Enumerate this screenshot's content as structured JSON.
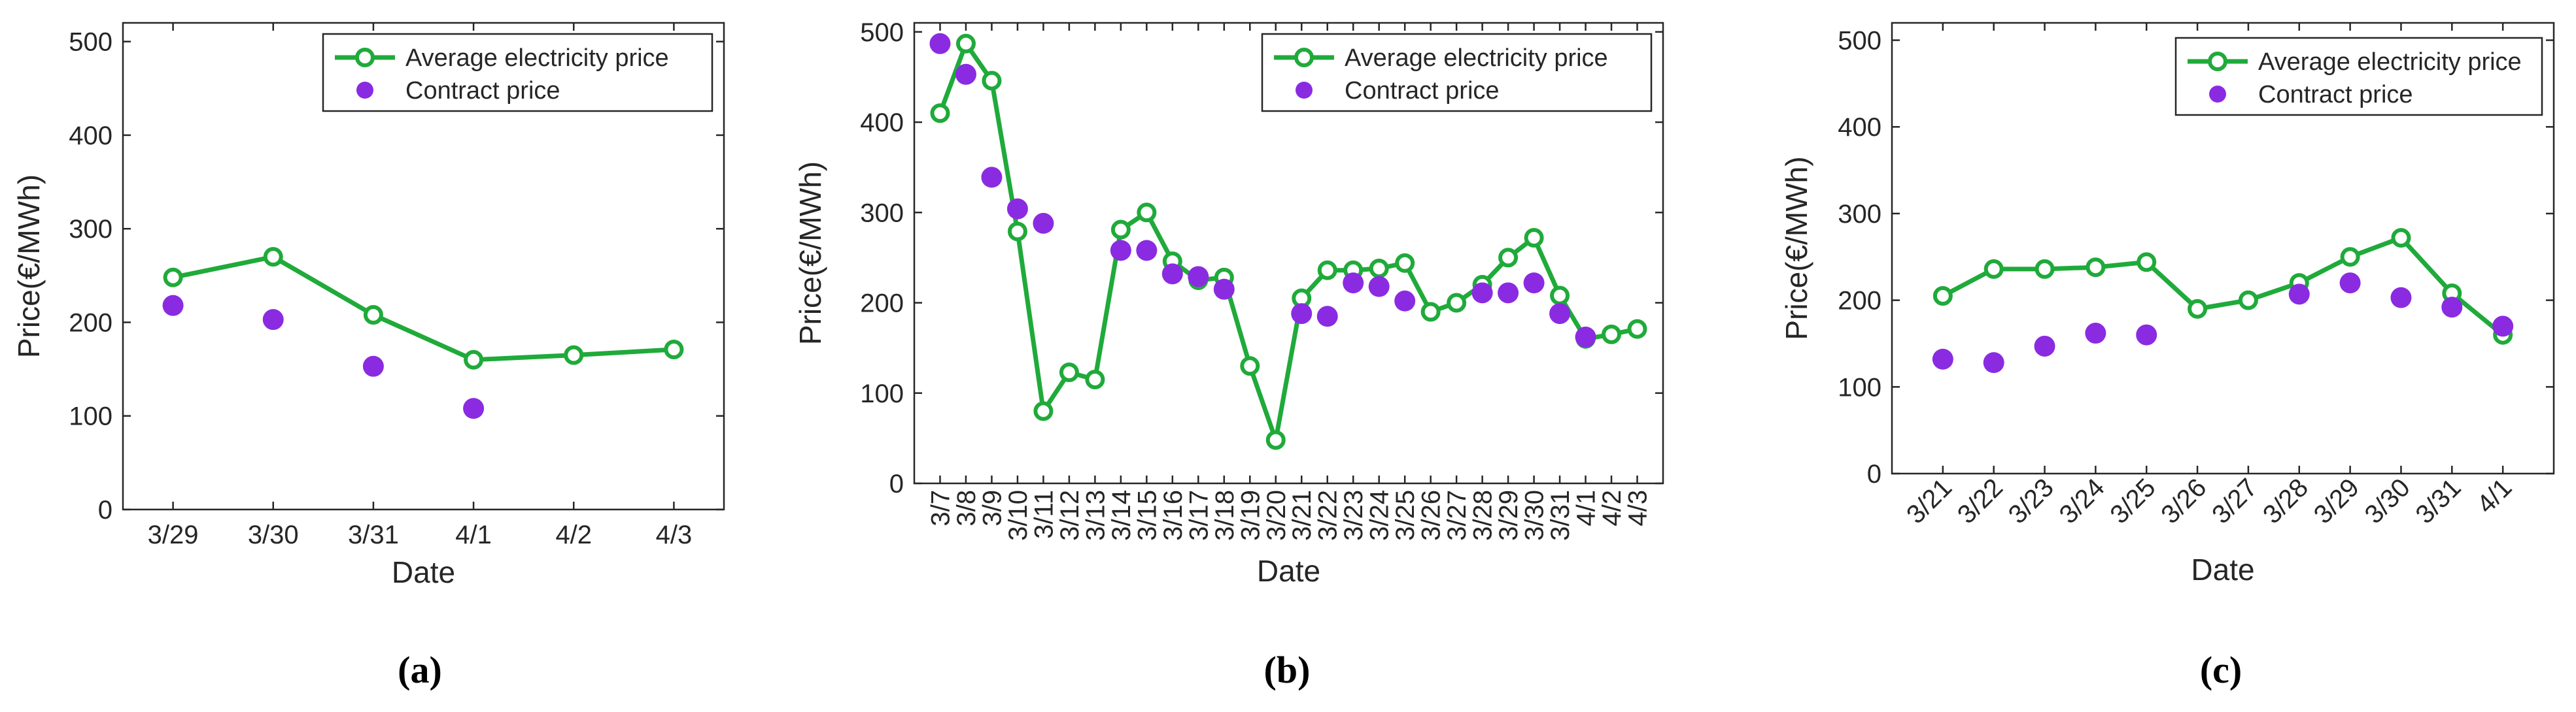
{
  "colors": {
    "avg_line": "#1faa3a",
    "contract_dot": "#8a2be2",
    "axis": "#262626",
    "background": "#ffffff"
  },
  "chart_data": [
    {
      "type": "line",
      "caption": "(a)",
      "title": "",
      "xlabel": "Date",
      "ylabel": "Price(€/MWh)",
      "ylim": [
        0,
        520
      ],
      "yticks": [
        0,
        100,
        200,
        300,
        400,
        500
      ],
      "categories": [
        "3/29",
        "3/30",
        "3/31",
        "4/1",
        "4/2",
        "4/3"
      ],
      "tick_rotation": 0,
      "legend_position": "top-right",
      "series": [
        {
          "name": "Average electricity price",
          "style": "line-marker",
          "values": [
            248,
            270,
            208,
            160,
            165,
            171
          ]
        },
        {
          "name": "Contract price",
          "style": "scatter",
          "values": [
            218,
            203,
            153,
            108,
            null,
            null
          ]
        }
      ]
    },
    {
      "type": "line",
      "caption": "(b)",
      "title": "",
      "xlabel": "Date",
      "ylabel": "Price(€/MWh)",
      "ylim": [
        0,
        510
      ],
      "yticks": [
        0,
        100,
        200,
        300,
        400,
        500
      ],
      "categories": [
        "3/7",
        "3/8",
        "3/9",
        "3/10",
        "3/11",
        "3/12",
        "3/13",
        "3/14",
        "3/15",
        "3/16",
        "3/17",
        "3/18",
        "3/19",
        "3/20",
        "3/21",
        "3/22",
        "3/23",
        "3/24",
        "3/25",
        "3/26",
        "3/27",
        "3/28",
        "3/29",
        "3/30",
        "3/31",
        "4/1",
        "4/2",
        "4/3"
      ],
      "tick_rotation": -90,
      "legend_position": "top-right",
      "series": [
        {
          "name": "Average electricity price",
          "style": "line-marker",
          "values": [
            410,
            487,
            446,
            279,
            80,
            123,
            115,
            281,
            300,
            246,
            225,
            228,
            130,
            48,
            205,
            236,
            236,
            238,
            244,
            190,
            200,
            220,
            250,
            272,
            208,
            160,
            165,
            171
          ]
        },
        {
          "name": "Contract price",
          "style": "scatter",
          "values": [
            487,
            453,
            339,
            304,
            288,
            null,
            null,
            258,
            258,
            232,
            229,
            215,
            null,
            null,
            188,
            185,
            222,
            218,
            202,
            null,
            null,
            211,
            211,
            222,
            188,
            162,
            null,
            null
          ]
        }
      ]
    },
    {
      "type": "line",
      "caption": "(c)",
      "title": "",
      "xlabel": "Date",
      "ylabel": "Price(€/MWh)",
      "ylim": [
        0,
        520
      ],
      "yticks": [
        0,
        100,
        200,
        300,
        400,
        500
      ],
      "categories": [
        "3/21",
        "3/22",
        "3/23",
        "3/24",
        "3/25",
        "3/26",
        "3/27",
        "3/28",
        "3/29",
        "3/30",
        "3/31",
        "4/1"
      ],
      "tick_rotation": -45,
      "legend_position": "top-right",
      "series": [
        {
          "name": "Average electricity price",
          "style": "line-marker",
          "values": [
            205,
            236,
            236,
            238,
            244,
            190,
            200,
            220,
            250,
            272,
            208,
            160
          ]
        },
        {
          "name": "Contract price",
          "style": "scatter",
          "values": [
            132,
            128,
            147,
            162,
            160,
            null,
            null,
            207,
            220,
            203,
            192,
            170
          ]
        }
      ]
    }
  ]
}
